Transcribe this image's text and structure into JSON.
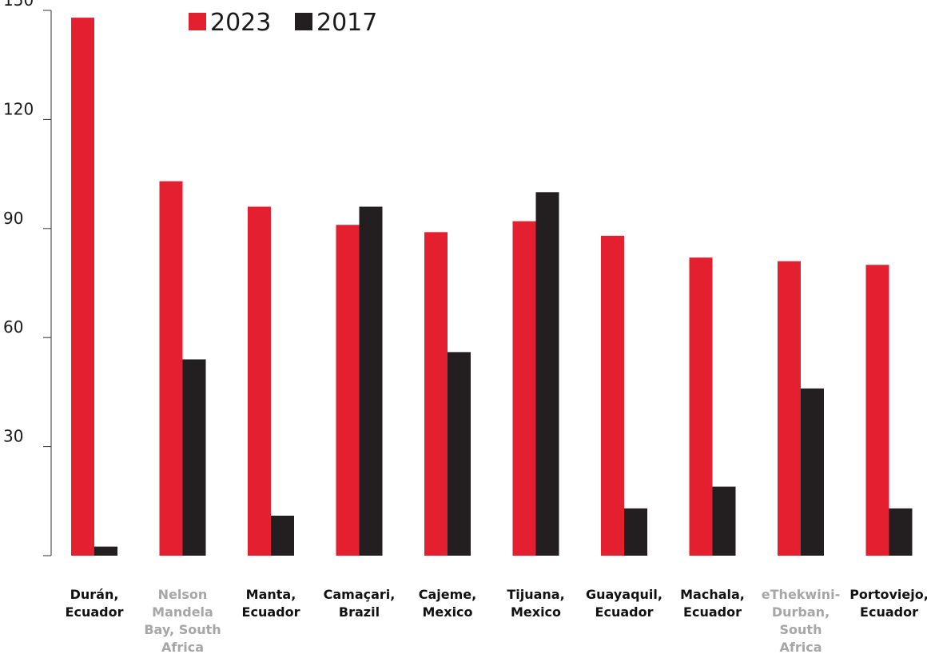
{
  "chart_data": {
    "type": "bar",
    "categories": [
      {
        "label": "Durán, Ecuador",
        "lines": [
          "Durán,",
          "Ecuador"
        ],
        "muted": false
      },
      {
        "label": "Nelson Mandela Bay, South Africa",
        "lines": [
          "Nelson",
          "Mandela",
          "Bay, South",
          "Africa"
        ],
        "muted": true
      },
      {
        "label": "Manta, Ecuador",
        "lines": [
          "Manta,",
          "Ecuador"
        ],
        "muted": false
      },
      {
        "label": "Camaçari, Brazil",
        "lines": [
          "Camaçari,",
          "Brazil"
        ],
        "muted": false
      },
      {
        "label": "Cajeme, Mexico",
        "lines": [
          "Cajeme,",
          "Mexico"
        ],
        "muted": false
      },
      {
        "label": "Tijuana, Mexico",
        "lines": [
          "Tijuana,",
          "Mexico"
        ],
        "muted": false
      },
      {
        "label": "Guayaquil, Ecuador",
        "lines": [
          "Guayaquil,",
          "Ecuador"
        ],
        "muted": false
      },
      {
        "label": "Machala, Ecuador",
        "lines": [
          "Machala,",
          "Ecuador"
        ],
        "muted": false
      },
      {
        "label": "eThekwini-Durban, South Africa",
        "lines": [
          "eThekwini-",
          "Durban,",
          "South",
          "Africa"
        ],
        "muted": true
      },
      {
        "label": "Portoviejo, Ecuador",
        "lines": [
          "Portoviejo,",
          "Ecuador"
        ],
        "muted": false
      }
    ],
    "series": [
      {
        "name": "2023",
        "color": "#e31f30",
        "values": [
          148,
          103,
          96,
          91,
          89,
          92,
          88,
          82,
          81,
          80
        ]
      },
      {
        "name": "2017",
        "color": "#231f20",
        "values": [
          2.5,
          54,
          11,
          96,
          56,
          100,
          13,
          19,
          46,
          13
        ]
      }
    ],
    "ylim": [
      0,
      150
    ],
    "yticks": [
      30,
      60,
      90,
      120,
      150
    ],
    "legend_position": "top-center",
    "grid": false,
    "label_color": "#111111",
    "muted_label_color": "#a6a6a6"
  }
}
